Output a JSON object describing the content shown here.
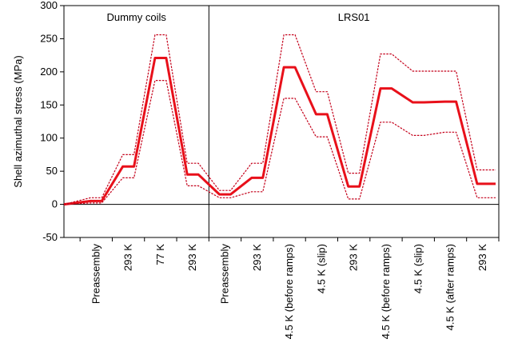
{
  "chart_data": {
    "type": "line",
    "ylabel": "Shell azimuthal stress (MPa)",
    "xlabel": "",
    "ylim": [
      -50,
      300
    ],
    "y_ticks": [
      -50,
      0,
      50,
      100,
      150,
      200,
      250,
      300
    ],
    "panels": [
      "Dummy coils",
      "LRS01"
    ],
    "divider_after_category": 3,
    "categories": [
      "Preassembly",
      "293 K",
      "77 K",
      "293 K",
      "Preassembly",
      "293 K",
      "4.5 K (before ramps)",
      "4.5 K (slip)",
      "293 K",
      "4.5 K (before ramps)",
      "4.5 K (slip)",
      "4.5 K (after ramps)",
      "293 K"
    ],
    "series": [
      {
        "values": [
          5,
          57,
          221,
          45,
          15,
          40,
          207,
          136,
          27,
          175,
          154,
          155,
          31
        ],
        "start_value": 0,
        "style": "solid",
        "color": "#e8101a"
      },
      {
        "values": [
          10,
          75,
          256,
          62,
          21,
          62,
          256,
          170,
          47,
          227,
          201,
          201,
          52
        ],
        "start_value": 0,
        "style": "dotted",
        "color": "#c4001a"
      },
      {
        "values": [
          2,
          40,
          187,
          28,
          10,
          19,
          160,
          102,
          8,
          124,
          104,
          109,
          10
        ],
        "start_value": 0,
        "style": "dotted",
        "color": "#c4001a"
      }
    ],
    "grid": false,
    "legend": "none"
  }
}
